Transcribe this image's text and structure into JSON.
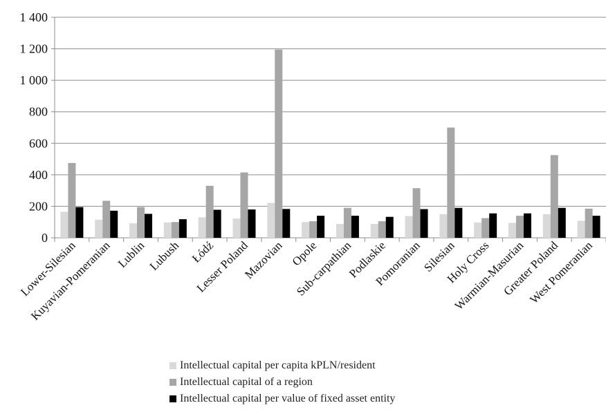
{
  "chart_data": {
    "type": "bar",
    "categories": [
      "Lower-Silesian",
      "Kuyavian-Pomeranian",
      "Lublin",
      "Lubush",
      "Łódź",
      "Lesser Poland",
      "Mazovian",
      "Opole",
      "Sub-carpathian",
      "Podlaskie",
      "Pomoranian",
      "Silesian",
      "Holy Cross",
      "Warmian-Masurian",
      "Greater Poland",
      "West Pomeranian"
    ],
    "series": [
      {
        "name": "Intellectual capital per capita kPLN/resident",
        "color": "#d9d9d9",
        "values": [
          165,
          115,
          92,
          97,
          130,
          122,
          222,
          100,
          88,
          88,
          138,
          150,
          97,
          95,
          150,
          108
        ]
      },
      {
        "name": "Intellectual capital of a region",
        "color": "#a6a6a6",
        "values": [
          475,
          235,
          195,
          100,
          330,
          415,
          1195,
          105,
          190,
          105,
          315,
          700,
          125,
          140,
          525,
          185
        ]
      },
      {
        "name": "Intellectual capital per value of fixed asset entity",
        "color": "#000000",
        "values": [
          195,
          172,
          152,
          118,
          178,
          180,
          183,
          140,
          140,
          133,
          182,
          190,
          155,
          155,
          190,
          140
        ]
      }
    ],
    "ylim": [
      0,
      1400
    ],
    "yticks": [
      0,
      200,
      400,
      600,
      800,
      1000,
      1200,
      1400
    ],
    "ytick_labels": [
      "0",
      "200",
      "400",
      "600",
      "800",
      "1 000",
      "1 200",
      "1 400"
    ],
    "grid": true,
    "legend_position": "bottom"
  }
}
